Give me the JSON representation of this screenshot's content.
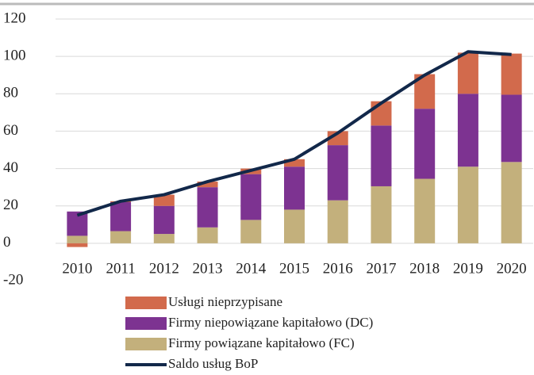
{
  "chart_data": {
    "type": "bar",
    "categories": [
      "2010",
      "2011",
      "2012",
      "2013",
      "2014",
      "2015",
      "2016",
      "2017",
      "2018",
      "2019",
      "2020"
    ],
    "series": [
      {
        "name": "Firmy powiązane kapitałowo (FC)",
        "color": "#c3b07c",
        "values": [
          4,
          6.5,
          5,
          8.5,
          12.5,
          18,
          23,
          30.5,
          34.5,
          41,
          43.5
        ]
      },
      {
        "name": "Firmy niepowiązane kapitałowo (DC)",
        "color": "#7d3391",
        "values": [
          13,
          15.5,
          15,
          21.5,
          24.5,
          23,
          29.5,
          32.5,
          37.5,
          39,
          36
        ]
      },
      {
        "name": "Usługi nieprzypisane",
        "color": "#d26a4c",
        "values": [
          -2,
          0.5,
          6,
          3,
          3,
          4,
          7.5,
          13,
          18.5,
          22,
          22
        ]
      },
      {
        "name": "Saldo usług BoP",
        "type": "line",
        "color": "#12284a",
        "values": [
          15,
          22.5,
          26,
          33,
          39,
          45,
          59,
          75,
          90,
          102.5,
          101
        ]
      }
    ],
    "ylim": [
      -20,
      120
    ],
    "yticks": [
      -20,
      0,
      20,
      40,
      60,
      80,
      100,
      120
    ],
    "grid": true
  }
}
